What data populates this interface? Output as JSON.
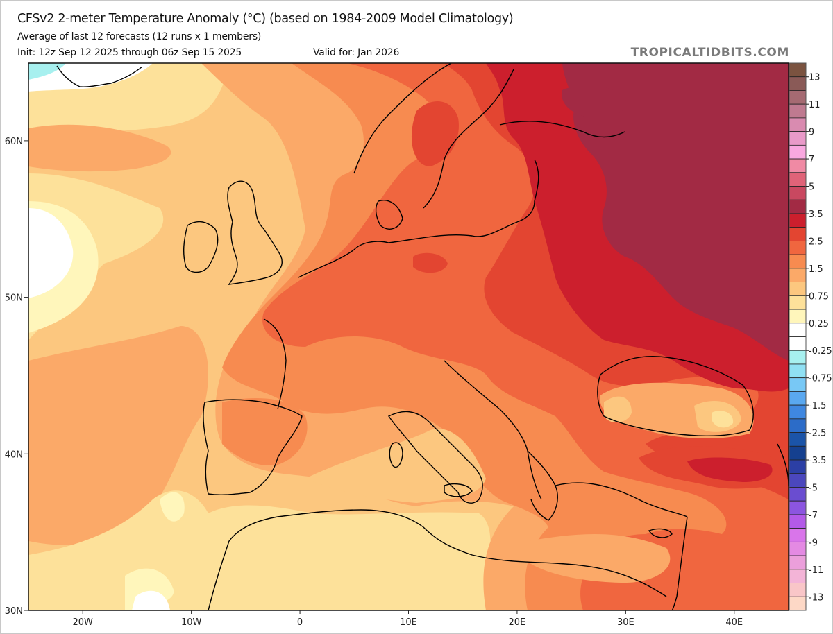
{
  "header": {
    "title": "CFSv2 2-meter Temperature Anomaly (°C) (based on 1984-2009 Model Climatology)",
    "subtitle": "Average of last 12 forecasts (12 runs x 1 members)",
    "init": "Init: 12z Sep 12 2025 through 06z Sep 15 2025",
    "valid": "Valid for: Jan 2026",
    "brand": "TROPICALTIDBITS.COM"
  },
  "map": {
    "variable": "2-meter temperature anomaly",
    "units": "°C",
    "lon_range": [
      -25,
      45
    ],
    "lat_range": [
      30,
      65
    ],
    "lon_ticks": [
      {
        "value": -20,
        "label": "20W"
      },
      {
        "value": -10,
        "label": "10W"
      },
      {
        "value": 0,
        "label": "0"
      },
      {
        "value": 10,
        "label": "10E"
      },
      {
        "value": 20,
        "label": "20E"
      },
      {
        "value": 30,
        "label": "30E"
      },
      {
        "value": 40,
        "label": "40E"
      }
    ],
    "lat_ticks": [
      {
        "value": 60,
        "label": "60N"
      },
      {
        "value": 50,
        "label": "50N"
      },
      {
        "value": 40,
        "label": "40N"
      },
      {
        "value": 30,
        "label": "30N"
      }
    ],
    "regions": [
      {
        "name": "western-russia",
        "anomaly_level": 3.5
      },
      {
        "name": "baltic-finland",
        "anomaly_level": 3.0
      },
      {
        "name": "eastern-europe",
        "anomaly_level": 3.0
      },
      {
        "name": "central-europe",
        "anomaly_level": 2.0
      },
      {
        "name": "france",
        "anomaly_level": 2.0
      },
      {
        "name": "eastern-anatolia",
        "anomaly_level": 3.0
      },
      {
        "name": "black-sea",
        "anomaly_level": 0.75
      },
      {
        "name": "iberia",
        "anomaly_level": 1.5
      },
      {
        "name": "mediterranean",
        "anomaly_level": 1.0
      },
      {
        "name": "north-atlantic",
        "anomaly_level": 1.0
      },
      {
        "name": "north-africa",
        "anomaly_level": 0.75
      },
      {
        "name": "greenland-sea",
        "anomaly_level": -0.75
      }
    ]
  },
  "colorbar": {
    "boxes": [
      {
        "color": "#7b5340"
      },
      {
        "color": "#8a5a57"
      },
      {
        "color": "#a56a72"
      },
      {
        "color": "#bf7a90"
      },
      {
        "color": "#d98bb0"
      },
      {
        "color": "#e99ac9"
      },
      {
        "color": "#f9a8e0"
      },
      {
        "color": "#f08aa4"
      },
      {
        "color": "#e06378"
      },
      {
        "color": "#c94860"
      },
      {
        "color": "#a22a44"
      },
      {
        "color": "#cc1f2d"
      },
      {
        "color": "#e34531"
      },
      {
        "color": "#f0663f"
      },
      {
        "color": "#f78b50"
      },
      {
        "color": "#fba968"
      },
      {
        "color": "#fcc77f"
      },
      {
        "color": "#fde19a"
      },
      {
        "color": "#fff6bb"
      },
      {
        "color": "#ffffff"
      },
      {
        "color": "#ffffff"
      },
      {
        "color": "#a7f0ef"
      },
      {
        "color": "#90e0f3"
      },
      {
        "color": "#78c8f5"
      },
      {
        "color": "#5aa8f0"
      },
      {
        "color": "#3f87e0"
      },
      {
        "color": "#2c6cc8"
      },
      {
        "color": "#1b54a8"
      },
      {
        "color": "#15408f"
      },
      {
        "color": "#2c3fa5"
      },
      {
        "color": "#4b47bd"
      },
      {
        "color": "#6a4dd0"
      },
      {
        "color": "#8c55e0"
      },
      {
        "color": "#b35ae8"
      },
      {
        "color": "#d975ea"
      },
      {
        "color": "#e48ae3"
      },
      {
        "color": "#eb9fdb"
      },
      {
        "color": "#f3b4d7"
      },
      {
        "color": "#f9c6c8"
      },
      {
        "color": "#fdd8c6"
      }
    ],
    "labels": [
      "13",
      "11",
      "9",
      "7",
      "5",
      "3.5",
      "2.5",
      "1.5",
      "0.75",
      "0.25",
      "-0.25",
      "-0.75",
      "-1.5",
      "-2.5",
      "-3.5",
      "-5",
      "-7",
      "-9",
      "-11",
      "-13"
    ]
  }
}
